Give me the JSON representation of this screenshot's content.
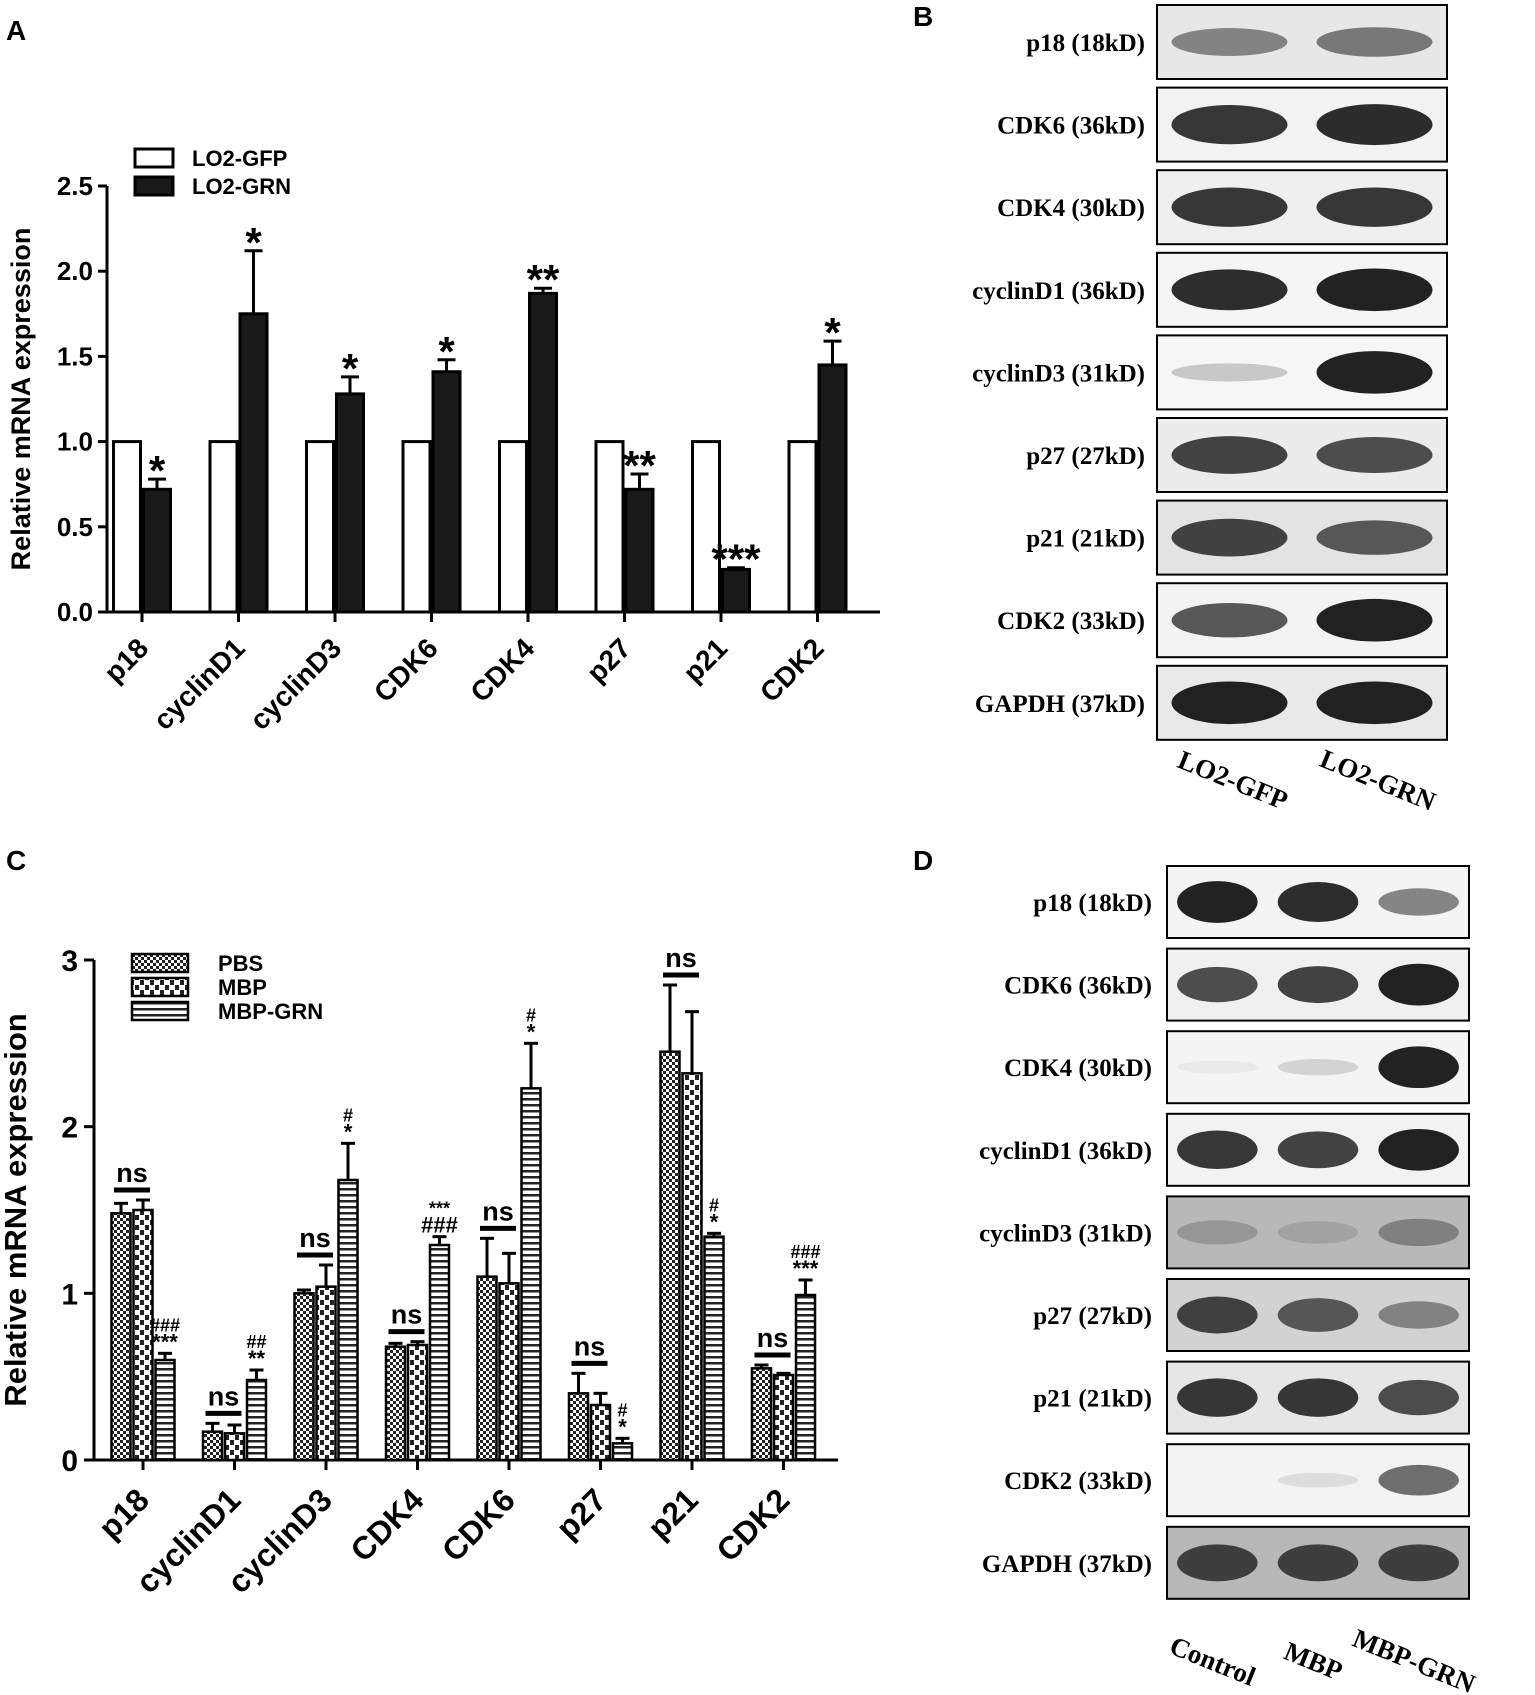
{
  "panels": {
    "A": "A",
    "B": "B",
    "C": "C",
    "D": "D"
  },
  "chart_data": [
    {
      "panel": "A",
      "type": "bar",
      "ylabel": "Relative mRNA expression",
      "ylim": [
        0,
        2.5
      ],
      "yticks": [
        "0.0",
        "0.5",
        "1.0",
        "1.5",
        "2.0",
        "2.5"
      ],
      "categories": [
        "p18",
        "cyclinD1",
        "cyclinD3",
        "CDK6",
        "CDK4",
        "p27",
        "p21",
        "CDK2"
      ],
      "legend_position": "top-left",
      "series": [
        {
          "name": "LO2-GFP",
          "fill": "#ffffff",
          "values": [
            1.0,
            1.0,
            1.0,
            1.0,
            1.0,
            1.0,
            1.0,
            1.0
          ],
          "errors": [
            0,
            0,
            0,
            0,
            0,
            0,
            0,
            0
          ]
        },
        {
          "name": "LO2-GRN",
          "fill": "#1a1a1a",
          "values": [
            0.72,
            1.75,
            1.28,
            1.41,
            1.87,
            0.72,
            0.25,
            1.45
          ],
          "errors": [
            0.06,
            0.37,
            0.1,
            0.07,
            0.03,
            0.09,
            0.01,
            0.14
          ]
        }
      ],
      "annotations": [
        "*",
        "*",
        "*",
        "*",
        "**",
        "**",
        "***",
        "*"
      ]
    },
    {
      "panel": "C",
      "type": "bar",
      "ylabel": "Relative mRNA expression",
      "ylim": [
        0,
        3
      ],
      "yticks": [
        "0",
        "1",
        "2",
        "3"
      ],
      "categories": [
        "p18",
        "cyclinD1",
        "cyclinD3",
        "CDK4",
        "CDK6",
        "p27",
        "p21",
        "CDK2"
      ],
      "legend_position": "top-left",
      "series": [
        {
          "name": "PBS",
          "pattern": "checker",
          "values": [
            1.48,
            0.17,
            1.0,
            0.68,
            1.1,
            0.4,
            2.45,
            0.55
          ],
          "errors": [
            0.06,
            0.05,
            0.02,
            0.02,
            0.23,
            0.12,
            0.4,
            0.02
          ]
        },
        {
          "name": "MBP",
          "pattern": "brick",
          "values": [
            1.5,
            0.16,
            1.04,
            0.69,
            1.06,
            0.33,
            2.32,
            0.51
          ],
          "errors": [
            0.06,
            0.05,
            0.13,
            0.02,
            0.18,
            0.07,
            0.37,
            0.01
          ]
        },
        {
          "name": "MBP-GRN",
          "pattern": "hlines",
          "values": [
            0.6,
            0.48,
            1.68,
            1.29,
            2.23,
            0.1,
            1.34,
            0.99
          ],
          "errors": [
            0.04,
            0.06,
            0.22,
            0.05,
            0.27,
            0.03,
            0.02,
            0.09
          ]
        }
      ],
      "ns_labels": [
        "ns",
        "ns",
        "ns",
        "ns",
        "ns",
        "ns",
        "ns",
        "ns"
      ],
      "annotations": [
        [
          "###",
          "***"
        ],
        [
          "##",
          "**"
        ],
        [
          "#",
          "*"
        ],
        [
          "***",
          "###"
        ],
        [
          "#",
          "*"
        ],
        [
          "#",
          "*"
        ],
        [
          "#",
          "*"
        ],
        [
          "###",
          "***"
        ]
      ]
    }
  ],
  "blots": [
    {
      "panel": "B",
      "labels": [
        "p18 (18kD)",
        "CDK6 (36kD)",
        "CDK4 (30kD)",
        "cyclinD1 (36kD)",
        "cyclinD3 (31kD)",
        "p27 (27kD)",
        "p21 (21kD)",
        "CDK2 (33kD)",
        "GAPDH (37kD)"
      ],
      "lanes": [
        "LO2-GFP",
        "LO2-GRN"
      ],
      "intensity": [
        [
          0.55,
          0.6
        ],
        [
          0.9,
          0.95
        ],
        [
          0.9,
          0.9
        ],
        [
          0.95,
          1.0
        ],
        [
          0.25,
          1.0
        ],
        [
          0.85,
          0.8
        ],
        [
          0.85,
          0.75
        ],
        [
          0.75,
          1.0
        ],
        [
          1.0,
          1.0
        ]
      ],
      "bg": [
        "#e7e7e7",
        "#f2f2f2",
        "#efefef",
        "#f5f5f5",
        "#f6f6f6",
        "#ececec",
        "#e3e3e3",
        "#f3f3f3",
        "#e9e9e9"
      ]
    },
    {
      "panel": "D",
      "labels": [
        "p18 (18kD)",
        "CDK6 (36kD)",
        "CDK4 (30kD)",
        "cyclinD1 (36kD)",
        "cyclinD3 (31kD)",
        "p27 (27kD)",
        "p21 (21kD)",
        "CDK2 (33kD)",
        "GAPDH (37kD)"
      ],
      "lanes": [
        "Control",
        "MBP",
        "MBP-GRN"
      ],
      "intensity": [
        [
          1.0,
          0.95,
          0.55
        ],
        [
          0.8,
          0.85,
          1.0
        ],
        [
          0.1,
          0.2,
          1.0
        ],
        [
          0.9,
          0.85,
          1.0
        ],
        [
          0.45,
          0.4,
          0.55
        ],
        [
          0.85,
          0.75,
          0.55
        ],
        [
          0.9,
          0.9,
          0.8
        ],
        [
          0.05,
          0.15,
          0.65
        ],
        [
          0.85,
          0.85,
          0.85
        ]
      ],
      "bg": [
        "#f4f4f4",
        "#f0f0f0",
        "#f4f4f4",
        "#f2f2f2",
        "#b8b8b8",
        "#d2d2d2",
        "#e6e6e6",
        "#f3f3f3",
        "#b8b8b8"
      ]
    }
  ]
}
